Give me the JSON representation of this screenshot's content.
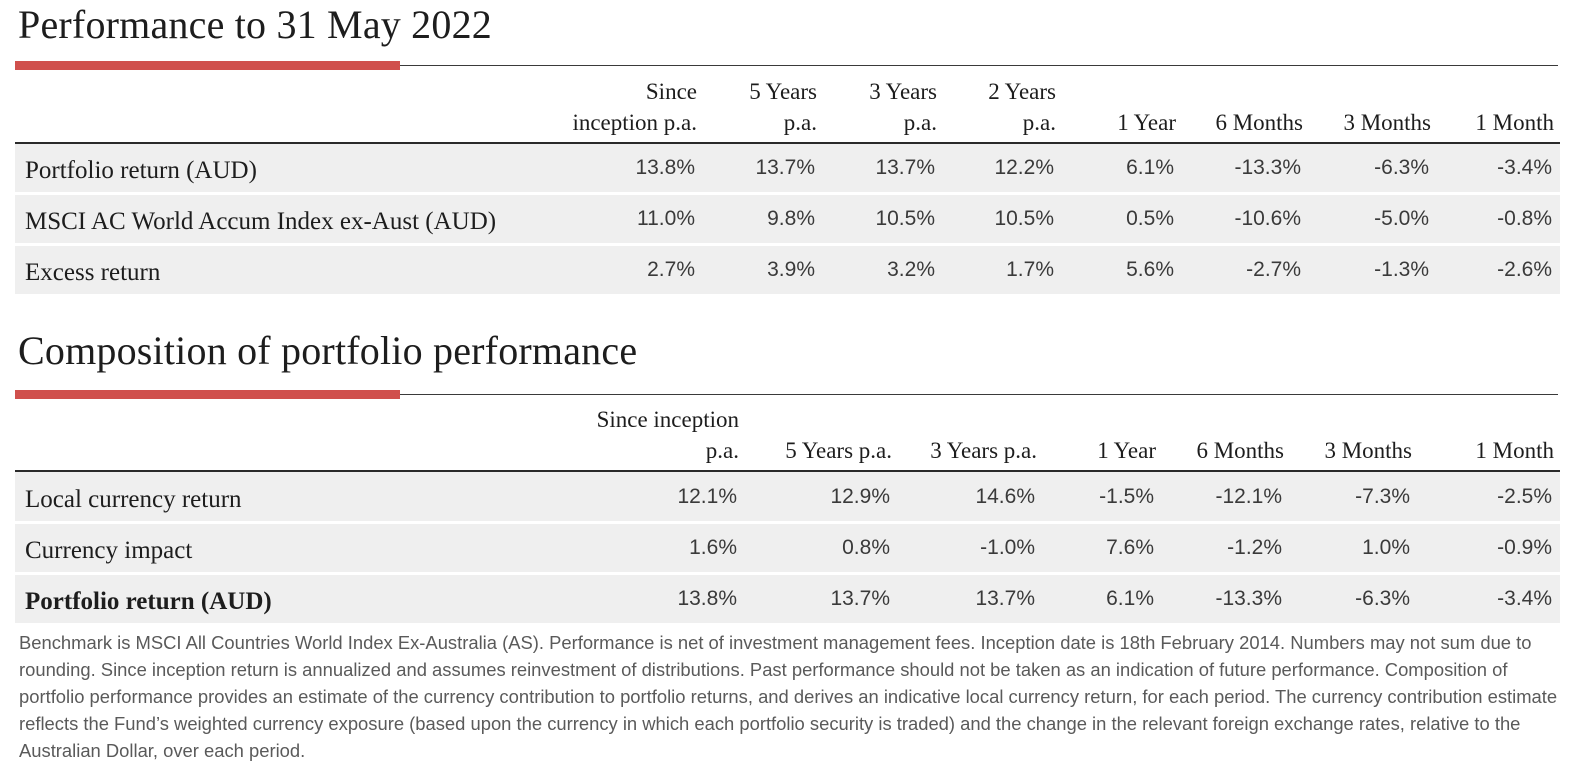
{
  "accent_color": "#d0504d",
  "performance": {
    "title": "Performance to 31 May 2022",
    "columns": [
      "Since\ninception p.a.",
      "5 Years\np.a.",
      "3 Years\np.a.",
      "2 Years\np.a.",
      "1 Year",
      "6 Months",
      "3 Months",
      "1 Month"
    ],
    "rows": [
      {
        "label": "Portfolio return (AUD)",
        "values": [
          "13.8%",
          "13.7%",
          "13.7%",
          "12.2%",
          "6.1%",
          "-13.3%",
          "-6.3%",
          "-3.4%"
        ]
      },
      {
        "label": "MSCI AC World Accum Index ex-Aust (AUD)",
        "values": [
          "11.0%",
          "9.8%",
          "10.5%",
          "10.5%",
          "0.5%",
          "-10.6%",
          "-5.0%",
          "-0.8%"
        ]
      },
      {
        "label": "Excess return",
        "values": [
          "2.7%",
          "3.9%",
          "3.2%",
          "1.7%",
          "5.6%",
          "-2.7%",
          "-1.3%",
          "-2.6%"
        ]
      }
    ]
  },
  "composition": {
    "title": "Composition of portfolio performance",
    "columns": [
      "Since inception\np.a.",
      "5 Years  p.a.",
      "3 Years p.a.",
      "1 Year",
      "6 Months",
      "3 Months",
      "1 Month"
    ],
    "rows": [
      {
        "label": "Local currency return",
        "values": [
          "12.1%",
          "12.9%",
          "14.6%",
          "-1.5%",
          "-12.1%",
          "-7.3%",
          "-2.5%"
        ]
      },
      {
        "label": "Currency impact",
        "values": [
          "1.6%",
          "0.8%",
          "-1.0%",
          "7.6%",
          "-1.2%",
          "1.0%",
          "-0.9%"
        ]
      },
      {
        "label": "Portfolio return (AUD)",
        "values": [
          "13.8%",
          "13.7%",
          "13.7%",
          "6.1%",
          "-13.3%",
          "-6.3%",
          "-3.4%"
        ]
      }
    ]
  },
  "footnote": "Benchmark is MSCI All Countries World Index Ex-Australia (AS). Performance is net of investment management fees. Inception date is 18th February 2014. Numbers may not sum due to rounding. Since inception return is annualized and assumes reinvestment of distributions. Past performance should not be taken as an indication of future performance. Composition of portfolio performance provides an estimate of the currency contribution to portfolio returns, and derives an indicative local currency return, for each period. The currency contribution estimate reflects the Fund’s weighted currency exposure (based upon the currency in which each portfolio security is traded) and the change in the relevant foreign exchange rates, relative to the Australian Dollar, over each period."
}
